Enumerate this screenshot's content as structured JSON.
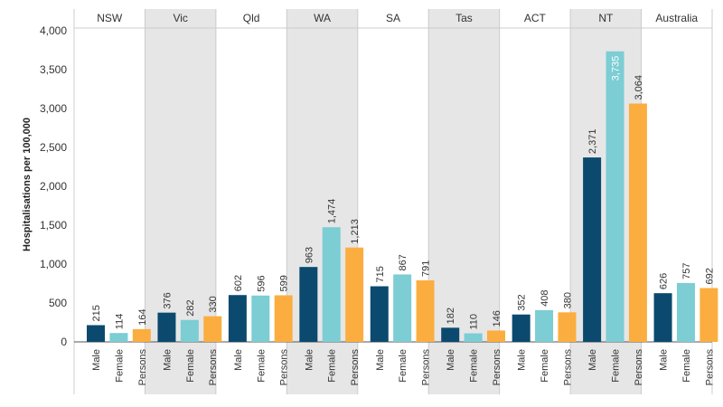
{
  "chart_data": {
    "type": "bar",
    "title": "",
    "ylabel": "Hospitalisations per 100,000",
    "xlabel": "",
    "ylim": [
      0,
      4000
    ],
    "yticks": [
      0,
      500,
      1000,
      1500,
      2000,
      2500,
      3000,
      3500,
      4000
    ],
    "ytick_labels": [
      "0",
      "500",
      "1,000",
      "1,500",
      "2,000",
      "2,500",
      "3,000",
      "3,500",
      "4,000"
    ],
    "categories": [
      "Male",
      "Female",
      "Persons"
    ],
    "series_colors": {
      "Male": "#0b4a6e",
      "Female": "#7ccdd4",
      "Persons": "#fbae3f"
    },
    "shaded_panel_color": "#e6e6e6",
    "panels": [
      {
        "name": "NSW",
        "shaded": false,
        "values": [
          215,
          114,
          164
        ],
        "labels": [
          "215",
          "114",
          "164"
        ]
      },
      {
        "name": "Vic",
        "shaded": true,
        "values": [
          376,
          282,
          330
        ],
        "labels": [
          "376",
          "282",
          "330"
        ]
      },
      {
        "name": "Qld",
        "shaded": false,
        "values": [
          602,
          596,
          599
        ],
        "labels": [
          "602",
          "596",
          "599"
        ]
      },
      {
        "name": "WA",
        "shaded": true,
        "values": [
          963,
          1474,
          1213
        ],
        "labels": [
          "963",
          "1,474",
          "1,213"
        ]
      },
      {
        "name": "SA",
        "shaded": false,
        "values": [
          715,
          867,
          791
        ],
        "labels": [
          "715",
          "867",
          "791"
        ]
      },
      {
        "name": "Tas",
        "shaded": true,
        "values": [
          182,
          110,
          146
        ],
        "labels": [
          "182",
          "110",
          "146"
        ]
      },
      {
        "name": "ACT",
        "shaded": false,
        "values": [
          352,
          408,
          380
        ],
        "labels": [
          "352",
          "408",
          "380"
        ]
      },
      {
        "name": "NT",
        "shaded": true,
        "values": [
          2371,
          3735,
          3064
        ],
        "labels": [
          "2,371",
          "3,735",
          "3,064"
        ]
      },
      {
        "name": "Australia",
        "shaded": false,
        "values": [
          626,
          757,
          692
        ],
        "labels": [
          "626",
          "757",
          "692"
        ]
      }
    ]
  }
}
